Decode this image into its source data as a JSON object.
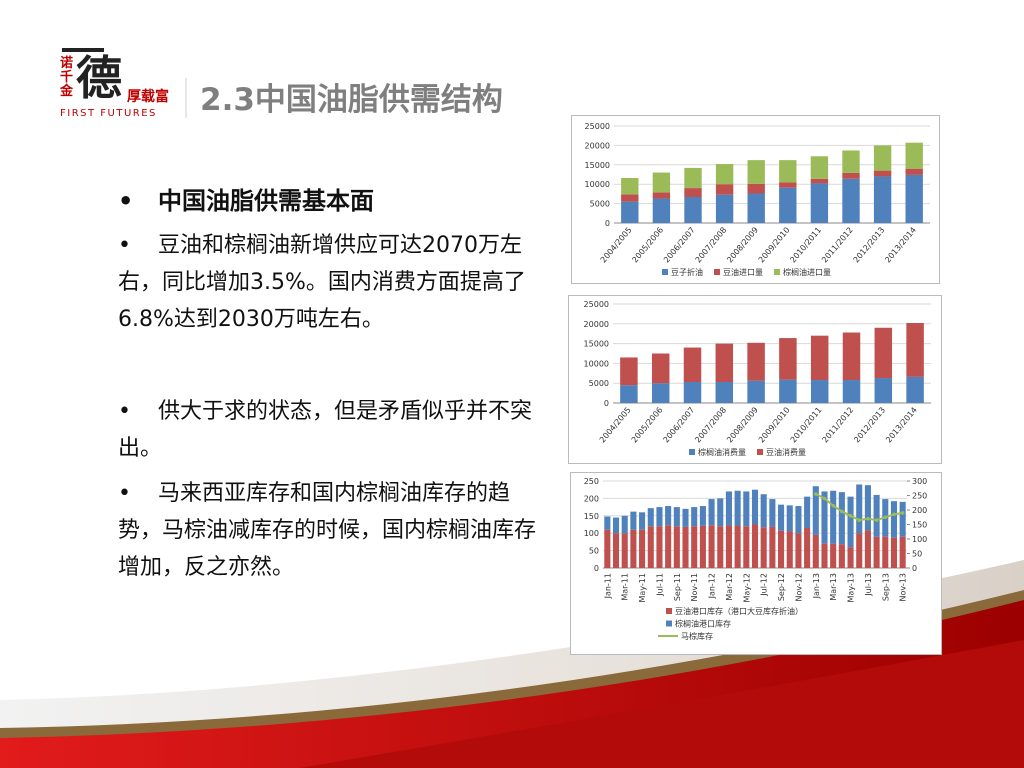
{
  "logo": {
    "side": "诺千金",
    "main": "德",
    "tag": "厚载富",
    "english": "FIRST FUTURES"
  },
  "header": {
    "title": "2.3中国油脂供需结构"
  },
  "bullets": [
    {
      "text": "中国油脂供需基本面"
    },
    {
      "text": "豆油和棕榈油新增供应可达2070万左右，同比增加3.5%。国内消费方面提高了6.8%达到2030万吨左右。"
    },
    {
      "text": "供大于求的状态，但是矛盾似乎并不突出。"
    },
    {
      "text": "马来西亚库存和国内棕榈油库存的趋势，马棕油减库存的时候，国内棕榈油库存增加，反之亦然。"
    }
  ],
  "chart_data": [
    {
      "type": "bar",
      "stacked": true,
      "legend": "bottom",
      "grid": true,
      "categories": [
        "2004/2005",
        "2005/2006",
        "2006/2007",
        "2007/2008",
        "2008/2009",
        "2009/2010",
        "2010/2011",
        "2011/2012",
        "2012/2013",
        "2013/2014"
      ],
      "ylim": [
        0,
        25000
      ],
      "yticks": [
        0,
        5000,
        10000,
        15000,
        20000,
        25000
      ],
      "series": [
        {
          "name": "豆子折油",
          "color": "#4f81bd",
          "values": [
            5500,
            6300,
            6700,
            7300,
            7600,
            9100,
            10200,
            11400,
            12000,
            12400
          ]
        },
        {
          "name": "豆油进口量",
          "color": "#c0504d",
          "values": [
            1900,
            1600,
            2300,
            2700,
            2500,
            1400,
            1200,
            1500,
            1500,
            1600
          ]
        },
        {
          "name": "棕榈油进口量",
          "color": "#9bbb59",
          "values": [
            4200,
            5100,
            5200,
            5200,
            6100,
            5700,
            5800,
            5800,
            6500,
            6700
          ]
        }
      ]
    },
    {
      "type": "bar",
      "stacked": true,
      "legend": "bottom",
      "grid": true,
      "categories": [
        "2004/2005",
        "2005/2006",
        "2006/2007",
        "2007/2008",
        "2008/2009",
        "2009/2010",
        "2010/2011",
        "2011/2012",
        "2012/2013",
        "2013/2014"
      ],
      "ylim": [
        0,
        25000
      ],
      "yticks": [
        0,
        5000,
        10000,
        15000,
        20000,
        25000
      ],
      "series": [
        {
          "name": "棕榈油消费量",
          "color": "#4f81bd",
          "values": [
            4500,
            5000,
            5300,
            5300,
            5600,
            5900,
            5800,
            5800,
            6300,
            6600
          ]
        },
        {
          "name": "豆油消费量",
          "color": "#c0504d",
          "values": [
            7000,
            7500,
            8700,
            9700,
            9600,
            10500,
            11200,
            12000,
            12700,
            13600
          ]
        }
      ]
    },
    {
      "type": "bar",
      "stacked": true,
      "legend": "bottom-left",
      "grid": true,
      "categories": [
        "Jan-11",
        null,
        "Mar-11",
        null,
        "May-11",
        null,
        "Jul-11",
        null,
        "Sep-11",
        null,
        "Nov-11",
        null,
        "Jan-12",
        null,
        "Mar-12",
        null,
        "May-12",
        null,
        "Jul-12",
        null,
        "Sep-12",
        null,
        "Nov-12",
        null,
        "Jan-13",
        null,
        "Mar-13",
        null,
        "May-13",
        null,
        "Jul-13",
        null,
        "Sep-13",
        null,
        "Nov-13"
      ],
      "ylim": [
        0,
        250
      ],
      "yticks": [
        0,
        50,
        100,
        150,
        200,
        250
      ],
      "y2lim": [
        0,
        300
      ],
      "y2ticks": [
        0,
        50,
        100,
        150,
        200,
        250,
        300
      ],
      "series": [
        {
          "name": "豆油港口库存（港口大豆库存折油）",
          "color": "#c0504d",
          "values": [
            110,
            100,
            100,
            110,
            110,
            120,
            120,
            123,
            120,
            118,
            120,
            121,
            123,
            120,
            122,
            122,
            120,
            125,
            117,
            118,
            107,
            105,
            100,
            115,
            95,
            70,
            70,
            68,
            60,
            100,
            108,
            90,
            90,
            87,
            90
          ]
        },
        {
          "name": "棕榈油港口库存",
          "color": "#4f81bd",
          "values": [
            38,
            45,
            50,
            52,
            50,
            52,
            55,
            55,
            55,
            52,
            55,
            57,
            75,
            80,
            98,
            100,
            100,
            100,
            95,
            80,
            75,
            75,
            78,
            90,
            140,
            150,
            152,
            150,
            145,
            140,
            130,
            120,
            108,
            105,
            100
          ]
        },
        {
          "name": "马棕库存",
          "color": "#9bbb59",
          "type": "line",
          "axis": "y2",
          "values": [
            null,
            null,
            null,
            null,
            null,
            null,
            null,
            null,
            null,
            null,
            null,
            null,
            null,
            null,
            null,
            null,
            null,
            null,
            null,
            null,
            null,
            null,
            null,
            null,
            255,
            240,
            215,
            195,
            180,
            165,
            170,
            165,
            175,
            185,
            190
          ]
        }
      ]
    }
  ]
}
